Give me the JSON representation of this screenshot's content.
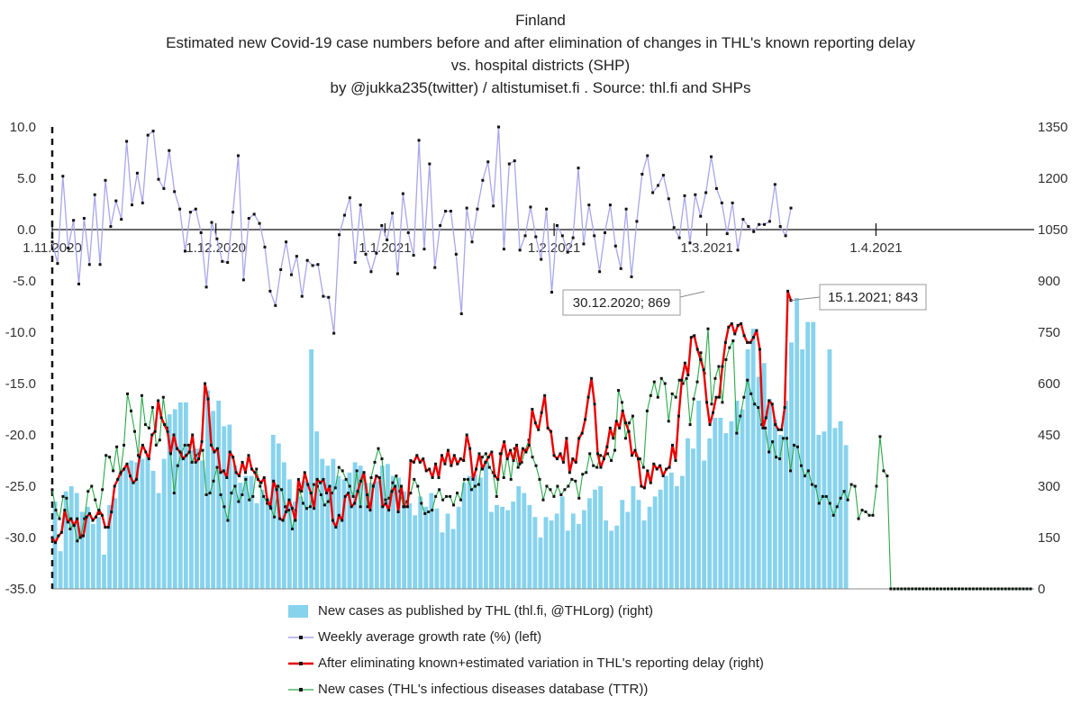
{
  "titles": [
    "Finland",
    "Estimated new Covid-19 case numbers before and after elimination of changes in THL's known reporting delay",
    "vs. hospital districts (SHP)",
    "by @jukka235(twitter) / altistumiset.fi . Source: thl.fi and SHPs"
  ],
  "chart_data": {
    "type": "bar+line",
    "left_axis": {
      "min": -35,
      "max": 10,
      "ticks": [
        "10.0",
        "5.0",
        "0.0",
        "-5.0",
        "-10.0",
        "-15.0",
        "-20.0",
        "-25.0",
        "-30.0",
        "-35.0"
      ],
      "values": [
        10,
        5,
        0,
        -5,
        -10,
        -15,
        -20,
        -25,
        -30,
        -35
      ]
    },
    "right_axis": {
      "min": 0,
      "max": 1350,
      "ticks": [
        "1350",
        "1200",
        "1050",
        "900",
        "750",
        "600",
        "450",
        "300",
        "150",
        "0"
      ],
      "values": [
        1350,
        1200,
        1050,
        900,
        750,
        600,
        450,
        300,
        150,
        0
      ]
    },
    "date_labels": [
      {
        "label": "1.11.2020",
        "day": 0
      },
      {
        "label": "1.12.2020",
        "day": 30
      },
      {
        "label": "1.1.2021",
        "day": 61
      },
      {
        "label": "1.2.2021",
        "day": 92
      },
      {
        "label": "1.3.2021",
        "day": 120
      },
      {
        "label": "1.4.2021",
        "day": 151
      }
    ],
    "total_days": 180,
    "series": [
      {
        "name": "New cases as published by THL (thl.fi, @THLorg) (right)",
        "type": "bar",
        "axis": "right",
        "color": "#87d3ee",
        "values": [
          255,
          110,
          285,
          300,
          280,
          225,
          240,
          190,
          210,
          100,
          245,
          265,
          340,
          355,
          375,
          370,
          380,
          390,
          345,
          280,
          380,
          510,
          525,
          545,
          545,
          405,
          410,
          375,
          580,
          520,
          550,
          475,
          480,
          360,
          310,
          330,
          330,
          250,
          290,
          265,
          450,
          425,
          370,
          320,
          255,
          270,
          315,
          700,
          460,
          380,
          360,
          380,
          330,
          320,
          340,
          370,
          360,
          310,
          310,
          315,
          360,
          365,
          330,
          325,
          285,
          250,
          215,
          270,
          240,
          280,
          235,
          165,
          220,
          175,
          240,
          310,
          330,
          335,
          325,
          375,
          225,
          245,
          240,
          230,
          255,
          300,
          280,
          245,
          210,
          150,
          210,
          200,
          220,
          270,
          170,
          220,
          190,
          230,
          265,
          290,
          300,
          200,
          170,
          185,
          260,
          225,
          300,
          260,
          200,
          240,
          270,
          290,
          330,
          340,
          300,
          330,
          440,
          410,
          550,
          375,
          440,
          500,
          500,
          455,
          490,
          550,
          525,
          700,
          760,
          620,
          660,
          555,
          495,
          450,
          550,
          720,
          850,
          700,
          780,
          780,
          450,
          460,
          700,
          470,
          490,
          420
        ]
      },
      {
        "name": "Weekly average growth rate (%) (left)",
        "type": "line",
        "axis": "left",
        "color": "#a9a6ea",
        "values": [
          -1.2,
          -3.3,
          5.2,
          -1.8,
          0.9,
          -5.3,
          1.1,
          -3.4,
          3.4,
          -3.4,
          4.8,
          0.3,
          2.8,
          1.0,
          8.6,
          2.4,
          5.5,
          2.6,
          9.2,
          9.6,
          4.9,
          4.0,
          7.7,
          3.7,
          2.0,
          -2.1,
          1.7,
          2.0,
          -0.3,
          -5.6,
          0.7,
          -0.9,
          -3.1,
          -3.2,
          1.7,
          7.2,
          -4.9,
          1.1,
          1.5,
          0.6,
          -1.7,
          -6.0,
          -7.4,
          -3.9,
          -1.2,
          -4.4,
          -2.6,
          -6.5,
          -3.0,
          -3.5,
          -3.4,
          -6.5,
          -6.6,
          -10.1,
          -0.5,
          1.4,
          3.1,
          -3.2,
          2.4,
          -2.4,
          -4.1,
          -2.3,
          0.4,
          -1.0,
          1.6,
          -4.3,
          3.5,
          -0.3,
          -2.5,
          8.7,
          -1.9,
          6.4,
          -3.7,
          0.4,
          1.8,
          1.8,
          -2.4,
          -8.2,
          2.1,
          -1.2,
          2.0,
          4.8,
          6.6,
          2.3,
          10.0,
          -1.9,
          6.4,
          6.7,
          -2.0,
          -0.6,
          2.2,
          -0.7,
          -2.9,
          2.0,
          -6.1,
          0.4,
          -0.6,
          -2.2,
          -0.8,
          6.0,
          -1.4,
          2.4,
          -0.6,
          -4.1,
          -0.3,
          2.4,
          -1.6,
          -3.8,
          2.0,
          -4.6,
          0.8,
          5.4,
          7.2,
          3.6,
          4.3,
          5.3,
          3.0,
          0.2,
          -0.8,
          3.3,
          -1.3,
          3.4,
          1.3,
          3.6,
          7.1,
          4.0,
          2.6,
          -0.4,
          2.6,
          -2.0,
          1.0,
          0.3,
          -0.2,
          0.5,
          0.5,
          0.8,
          4.4,
          0.3,
          -0.6,
          2.1
        ]
      },
      {
        "name": "After eliminating known+estimated variation in THL's reporting delay (right)",
        "type": "line",
        "axis": "right",
        "color": "#e60000",
        "values": [
          150,
          135,
          155,
          165,
          230,
          195,
          205,
          185,
          205,
          150,
          155,
          210,
          220,
          200,
          210,
          230,
          215,
          180,
          180,
          225,
          300,
          320,
          340,
          350,
          365,
          330,
          310,
          320,
          385,
          420,
          400,
          380,
          450,
          460,
          550,
          500,
          480,
          460,
          395,
          450,
          410,
          400,
          380,
          390,
          400,
          450,
          370,
          380,
          430,
          600,
          555,
          420,
          400,
          410,
          340,
          345,
          325,
          400,
          385,
          340,
          330,
          370,
          340,
          390,
          350,
          340,
          320,
          310,
          325,
          260,
          240,
          315,
          290,
          205,
          200,
          225,
          260,
          235,
          200,
          320,
          285,
          340,
          305,
          280,
          235,
          320,
          310,
          320,
          280,
          300,
          200,
          180,
          215,
          200,
          270,
          280,
          240,
          250,
          285,
          315,
          340,
          275,
          230,
          300,
          330,
          325,
          240,
          250,
          230,
          285,
          300,
          225,
          300,
          240,
          240,
          375,
          370,
          390,
          370,
          380,
          345,
          350,
          325,
          365,
          325,
          390,
          365,
          405,
          360,
          390,
          365,
          380,
          375,
          450,
          410,
          320,
          350,
          395,
          350,
          370,
          385,
          400,
          330,
          320,
          395,
          430,
          380,
          405,
          375,
          420,
          365,
          410,
          400,
          420,
          525,
          485,
          465,
          515,
          565,
          470,
          460,
          390,
          380,
          395,
          370,
          440,
          340,
          380,
          370,
          440,
          455,
          495,
          560,
          615,
          540,
          395,
          355,
          380,
          415,
          470,
          440,
          490,
          470,
          520,
          485,
          460,
          390,
          405,
          380,
          300,
          295,
          345,
          310,
          365,
          350,
          360,
          330,
          350,
          355,
          420,
          375,
          505,
          610,
          660,
          625,
          735,
          740,
          700,
          670,
          640,
          545,
          480,
          515,
          560,
          560,
          650,
          720,
          765,
          775,
          745,
          770,
          775,
          740,
          720,
          720,
          735,
          755,
          700,
          470,
          500,
          550,
          540,
          480,
          465,
          465,
          530,
          870,
          843
        ]
      },
      {
        "name": "New cases (THL's infectious diseases database (TTR))",
        "type": "line",
        "axis": "right",
        "color": "#2ca84a",
        "values": [
          290,
          230,
          205,
          270,
          265,
          175,
          190,
          140,
          155,
          205,
          285,
          300,
          260,
          220,
          290,
          390,
          385,
          345,
          415,
          335,
          420,
          570,
          520,
          460,
          390,
          565,
          480,
          470,
          530,
          420,
          435,
          560,
          470,
          400,
          280,
          360,
          395,
          420,
          420,
          370,
          390,
          395,
          405,
          275,
          280,
          315,
          355,
          275,
          240,
          200,
          280,
          300,
          255,
          275,
          320,
          260,
          270,
          350,
          300,
          270,
          250,
          235,
          210,
          300,
          290,
          240,
          230,
          175,
          230,
          290,
          250,
          235,
          240,
          305,
          300,
          275,
          245,
          255,
          280,
          295,
          355,
          345,
          320,
          300,
          270,
          345,
          240,
          340,
          240,
          325,
          370,
          410,
          380,
          260,
          265,
          310,
          330,
          285,
          240,
          255,
          280,
          320,
          300,
          250,
          220,
          225,
          230,
          270,
          290,
          260,
          270,
          270,
          245,
          280,
          260,
          320,
          320,
          290,
          300,
          305,
          385,
          395,
          355,
          340,
          270,
          395,
          325,
          390,
          320,
          410,
          355,
          370,
          405,
          435,
          385,
          360,
          320,
          260,
          300,
          290,
          270,
          300,
          275,
          290,
          300,
          320,
          315,
          265,
          335,
          340,
          395,
          360,
          355,
          390,
          385,
          395,
          375,
          405,
          580,
          545,
          440,
          485,
          505,
          390,
          380,
          355,
          520,
          565,
          605,
          560,
          615,
          600,
          490,
          570,
          560,
          610,
          600,
          615,
          480,
          555,
          605,
          690,
          630,
          760,
          540,
          615,
          650,
          545,
          670,
          705,
          725,
          455,
          505,
          560,
          610,
          570,
          540,
          530,
          480,
          470,
          400,
          430,
          385,
          380,
          440,
          440,
          345,
          420,
          415,
          360,
          330,
          345,
          305,
          300,
          250,
          270,
          270,
          250,
          215,
          240,
          265,
          285,
          260,
          305,
          300,
          205,
          230,
          225,
          215,
          215,
          300,
          445,
          345,
          330,
          0,
          0,
          0,
          0,
          0,
          0,
          0,
          0,
          0,
          0,
          0,
          0,
          0,
          0,
          0,
          0,
          0,
          0,
          0,
          0,
          0,
          0,
          0,
          0,
          0,
          0,
          0,
          0,
          0,
          0,
          0,
          0,
          0,
          0,
          0,
          0,
          0,
          0,
          0,
          0
        ]
      }
    ],
    "callouts": [
      {
        "text": "30.12.2020; 869",
        "value": 869
      },
      {
        "text": "15.1.2021; 843",
        "value": 843
      }
    ],
    "legend_placement": "bottom"
  },
  "legend": [
    {
      "label": "New cases as published by THL (thl.fi, @THLorg) (right)",
      "color": "#87d3ee",
      "kind": "bar"
    },
    {
      "label": "Weekly average growth rate (%) (left)",
      "color": "#a9a6ea",
      "kind": "line"
    },
    {
      "label": "After eliminating known+estimated variation in THL's reporting delay (right)",
      "color": "#e60000",
      "kind": "line"
    },
    {
      "label": "New cases (THL's infectious diseases database (TTR))",
      "color": "#2ca84a",
      "kind": "line"
    }
  ]
}
